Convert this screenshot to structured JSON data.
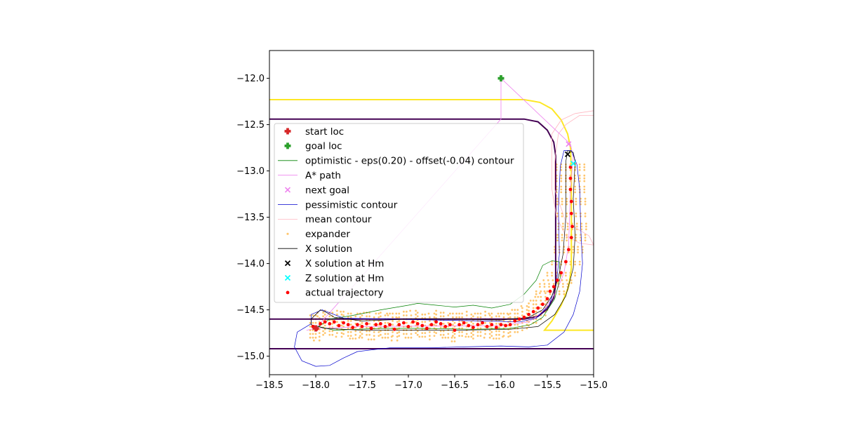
{
  "chart_data": {
    "type": "scatter",
    "title": "",
    "xlabel": "",
    "ylabel": "",
    "xlim": [
      -18.5,
      -15.0
    ],
    "ylim": [
      -15.2,
      -11.7
    ],
    "grid": false,
    "legend_placement": "center-left",
    "x_ticks": [
      -18.5,
      -18.0,
      -17.5,
      -17.0,
      -16.5,
      -16.0,
      -15.5,
      -15.0
    ],
    "x_tick_labels": [
      "−18.5",
      "−18.0",
      "−17.5",
      "−17.0",
      "−16.5",
      "−16.0",
      "−15.5",
      "−15.0"
    ],
    "y_ticks": [
      -12.0,
      -12.5,
      -13.0,
      -13.5,
      -14.0,
      -14.5,
      -15.0
    ],
    "y_tick_labels": [
      "−12.0",
      "−12.5",
      "−13.0",
      "−13.5",
      "−14.0",
      "−14.5",
      "−15.0"
    ],
    "colors": {
      "start": "#d62728",
      "goal": "#2ca02c",
      "optimistic": "#008000",
      "astar": "#ee82ee",
      "pessimistic": "#0000cd",
      "mean": "#ffb6c1",
      "expander": "#ffc66e",
      "x_solution": "#000000",
      "z_solution": "#00ffff",
      "actual": "#ff0000",
      "track_inner": "#440154",
      "track_outer": "#fde725"
    },
    "legend": [
      "start loc",
      "goal loc",
      "optimistic - eps(0.20) - offset(-0.04) contour",
      "A* path",
      "next goal",
      "pessimistic contour",
      "mean contour",
      "expander",
      "X solution",
      "X solution at Hm",
      "Z solution at Hm",
      "actual trajectory"
    ],
    "start_loc": [
      -18.0,
      -14.7
    ],
    "goal_loc": [
      -16.0,
      -12.0
    ],
    "next_goal": [
      -15.27,
      -12.71
    ],
    "x_solution_at_hm": [
      -15.28,
      -12.82
    ],
    "z_solution_at_hm": [
      -15.22,
      -12.92
    ],
    "track_inner": [
      [
        -18.5,
        -12.44
      ],
      [
        -15.75,
        -12.44
      ],
      [
        -15.6,
        -12.47
      ],
      [
        -15.5,
        -12.56
      ],
      [
        -15.43,
        -12.69
      ],
      [
        -15.41,
        -12.83
      ],
      [
        -15.41,
        -14.23
      ],
      [
        -15.43,
        -14.37
      ],
      [
        -15.5,
        -14.49
      ],
      [
        -15.6,
        -14.57
      ],
      [
        -15.75,
        -14.6
      ],
      [
        -18.5,
        -14.6
      ]
    ],
    "track_bottom_line": [
      [
        -18.5,
        -14.92
      ],
      [
        -15.0,
        -14.92
      ]
    ],
    "track_outer": [
      [
        -18.5,
        -12.23
      ],
      [
        -15.75,
        -12.23
      ],
      [
        -15.58,
        -12.26
      ],
      [
        -15.45,
        -12.33
      ],
      [
        -15.35,
        -12.45
      ],
      [
        -15.28,
        -12.6
      ],
      [
        -15.25,
        -12.75
      ],
      [
        -15.24,
        -13.0
      ],
      [
        -15.24,
        -14.05
      ],
      [
        -15.27,
        -14.25
      ],
      [
        -15.35,
        -14.45
      ],
      [
        -15.45,
        -14.62
      ],
      [
        -15.53,
        -14.72
      ],
      [
        -15.0,
        -14.72
      ]
    ],
    "astar_path": [
      [
        -18.1,
        -14.72
      ],
      [
        -18.0,
        -14.7
      ],
      [
        -16.0,
        -12.44
      ],
      [
        -16.0,
        -12.0
      ],
      [
        -15.25,
        -12.71
      ],
      [
        -15.22,
        -12.85
      ],
      [
        -15.25,
        -13.2
      ],
      [
        -15.27,
        -13.8
      ],
      [
        -15.32,
        -14.1
      ],
      [
        -15.4,
        -14.3
      ],
      [
        -15.55,
        -14.52
      ],
      [
        -15.7,
        -14.63
      ],
      [
        -16.0,
        -14.67
      ],
      [
        -17.5,
        -14.68
      ],
      [
        -18.0,
        -14.7
      ]
    ],
    "optimistic_contour": [
      [
        -17.97,
        -14.68
      ],
      [
        -17.85,
        -14.6
      ],
      [
        -17.6,
        -14.56
      ],
      [
        -17.3,
        -14.5
      ],
      [
        -17.0,
        -14.45
      ],
      [
        -16.9,
        -14.43
      ],
      [
        -16.7,
        -14.45
      ],
      [
        -16.5,
        -14.47
      ],
      [
        -16.3,
        -14.45
      ],
      [
        -16.1,
        -14.48
      ],
      [
        -15.9,
        -14.44
      ],
      [
        -15.75,
        -14.33
      ],
      [
        -15.62,
        -14.18
      ],
      [
        -15.55,
        -14.02
      ],
      [
        -15.45,
        -13.97
      ],
      [
        -15.37,
        -13.98
      ],
      [
        -15.36,
        -14.15
      ],
      [
        -15.42,
        -14.38
      ],
      [
        -15.55,
        -14.58
      ],
      [
        -15.68,
        -14.66
      ],
      [
        -15.9,
        -14.7
      ],
      [
        -16.3,
        -14.71
      ],
      [
        -16.8,
        -14.7
      ],
      [
        -17.3,
        -14.7
      ],
      [
        -17.8,
        -14.72
      ],
      [
        -17.97,
        -14.68
      ]
    ],
    "pessimistic_contour": [
      [
        -18.05,
        -14.65
      ],
      [
        -18.2,
        -14.74
      ],
      [
        -18.23,
        -14.9
      ],
      [
        -18.15,
        -15.05
      ],
      [
        -18.0,
        -15.11
      ],
      [
        -17.85,
        -15.1
      ],
      [
        -17.7,
        -15.02
      ],
      [
        -17.55,
        -14.95
      ],
      [
        -17.2,
        -14.91
      ],
      [
        -16.8,
        -14.91
      ],
      [
        -16.4,
        -14.9
      ],
      [
        -16.0,
        -14.89
      ],
      [
        -15.7,
        -14.9
      ],
      [
        -15.5,
        -14.88
      ],
      [
        -15.32,
        -14.74
      ],
      [
        -15.22,
        -14.55
      ],
      [
        -15.15,
        -14.3
      ],
      [
        -15.12,
        -14.0
      ],
      [
        -15.14,
        -13.6
      ],
      [
        -15.15,
        -13.2
      ],
      [
        -15.18,
        -12.93
      ],
      [
        -15.24,
        -12.78
      ],
      [
        -15.32,
        -12.78
      ],
      [
        -15.36,
        -12.95
      ],
      [
        -15.38,
        -13.4
      ],
      [
        -15.37,
        -13.9
      ],
      [
        -15.4,
        -14.2
      ],
      [
        -15.48,
        -14.45
      ],
      [
        -15.62,
        -14.59
      ],
      [
        -15.8,
        -14.63
      ],
      [
        -16.2,
        -14.62
      ],
      [
        -16.7,
        -14.61
      ],
      [
        -17.2,
        -14.6
      ],
      [
        -17.7,
        -14.59
      ],
      [
        -17.93,
        -14.5
      ],
      [
        -18.05,
        -14.55
      ],
      [
        -18.05,
        -14.65
      ]
    ],
    "mean_contour": [
      [
        -15.3,
        -12.5
      ],
      [
        -15.15,
        -12.4
      ],
      [
        -15.0,
        -12.4
      ],
      [
        -15.0,
        -12.35
      ],
      [
        -15.2,
        -12.38
      ],
      [
        -15.35,
        -12.45
      ],
      [
        -15.45,
        -12.6
      ],
      [
        -15.45,
        -12.9
      ],
      [
        -15.45,
        -13.2
      ],
      [
        -15.4,
        -13.5
      ],
      [
        -15.3,
        -13.7
      ],
      [
        -15.15,
        -13.78
      ],
      [
        -15.0,
        -13.8
      ],
      [
        -15.05,
        -13.7
      ],
      [
        -15.3,
        -13.55
      ],
      [
        -15.42,
        -13.2
      ],
      [
        -15.42,
        -12.9
      ],
      [
        -15.38,
        -12.6
      ],
      [
        -15.3,
        -12.5
      ]
    ],
    "x_solution": [
      [
        -18.05,
        -14.6
      ],
      [
        -17.95,
        -14.5
      ],
      [
        -17.88,
        -14.53
      ],
      [
        -17.8,
        -14.58
      ],
      [
        -17.5,
        -14.62
      ],
      [
        -17.0,
        -14.6
      ],
      [
        -16.5,
        -14.6
      ],
      [
        -16.0,
        -14.61
      ],
      [
        -15.7,
        -14.58
      ],
      [
        -15.55,
        -14.5
      ],
      [
        -15.45,
        -14.35
      ],
      [
        -15.38,
        -14.15
      ],
      [
        -15.33,
        -13.9
      ],
      [
        -15.3,
        -13.5
      ],
      [
        -15.3,
        -13.1
      ],
      [
        -15.3,
        -12.9
      ],
      [
        -15.28,
        -12.78
      ],
      [
        -15.22,
        -12.8
      ],
      [
        -15.2,
        -12.9
      ],
      [
        -15.22,
        -13.3
      ],
      [
        -15.2,
        -13.7
      ],
      [
        -15.22,
        -14.05
      ],
      [
        -15.3,
        -14.35
      ],
      [
        -15.42,
        -14.55
      ],
      [
        -15.6,
        -14.68
      ],
      [
        -15.9,
        -14.71
      ],
      [
        -16.5,
        -14.72
      ],
      [
        -17.0,
        -14.72
      ],
      [
        -17.5,
        -14.72
      ],
      [
        -17.9,
        -14.7
      ],
      [
        -18.05,
        -14.66
      ],
      [
        -18.05,
        -14.6
      ]
    ],
    "actual_trajectory": [
      [
        -18.03,
        -14.68
      ],
      [
        -17.99,
        -14.71
      ],
      [
        -17.95,
        -14.65
      ],
      [
        -17.9,
        -14.63
      ],
      [
        -17.85,
        -14.65
      ],
      [
        -17.8,
        -14.63
      ],
      [
        -17.75,
        -14.67
      ],
      [
        -17.7,
        -14.64
      ],
      [
        -17.65,
        -14.66
      ],
      [
        -17.6,
        -14.69
      ],
      [
        -17.55,
        -14.66
      ],
      [
        -17.5,
        -14.68
      ],
      [
        -17.45,
        -14.65
      ],
      [
        -17.4,
        -14.7
      ],
      [
        -17.35,
        -14.66
      ],
      [
        -17.3,
        -14.65
      ],
      [
        -17.25,
        -14.68
      ],
      [
        -17.2,
        -14.66
      ],
      [
        -17.15,
        -14.71
      ],
      [
        -17.1,
        -14.66
      ],
      [
        -17.05,
        -14.64
      ],
      [
        -17.0,
        -14.68
      ],
      [
        -16.95,
        -14.63
      ],
      [
        -16.9,
        -14.65
      ],
      [
        -16.85,
        -14.67
      ],
      [
        -16.8,
        -14.7
      ],
      [
        -16.75,
        -14.66
      ],
      [
        -16.7,
        -14.63
      ],
      [
        -16.65,
        -14.65
      ],
      [
        -16.6,
        -14.68
      ],
      [
        -16.55,
        -14.66
      ],
      [
        -16.5,
        -14.72
      ],
      [
        -16.45,
        -14.66
      ],
      [
        -16.4,
        -14.64
      ],
      [
        -16.35,
        -14.67
      ],
      [
        -16.3,
        -14.69
      ],
      [
        -16.25,
        -14.66
      ],
      [
        -16.2,
        -14.64
      ],
      [
        -16.15,
        -14.68
      ],
      [
        -16.1,
        -14.66
      ],
      [
        -16.05,
        -14.69
      ],
      [
        -16.0,
        -14.66
      ],
      [
        -15.95,
        -14.67
      ],
      [
        -15.9,
        -14.66
      ],
      [
        -15.85,
        -14.62
      ],
      [
        -15.8,
        -14.6
      ],
      [
        -15.75,
        -14.58
      ],
      [
        -15.7,
        -14.55
      ],
      [
        -15.65,
        -14.52
      ],
      [
        -15.6,
        -14.48
      ],
      [
        -15.55,
        -14.44
      ],
      [
        -15.5,
        -14.38
      ],
      [
        -15.47,
        -14.3
      ],
      [
        -15.43,
        -14.25
      ],
      [
        -15.39,
        -14.18
      ],
      [
        -15.35,
        -14.1
      ],
      [
        -15.3,
        -13.98
      ],
      [
        -15.27,
        -13.85
      ],
      [
        -15.24,
        -13.72
      ],
      [
        -15.23,
        -13.6
      ],
      [
        -15.24,
        -13.46
      ],
      [
        -15.24,
        -13.33
      ],
      [
        -15.25,
        -13.2
      ],
      [
        -15.25,
        -13.08
      ],
      [
        -15.25,
        -12.96
      ]
    ]
  }
}
